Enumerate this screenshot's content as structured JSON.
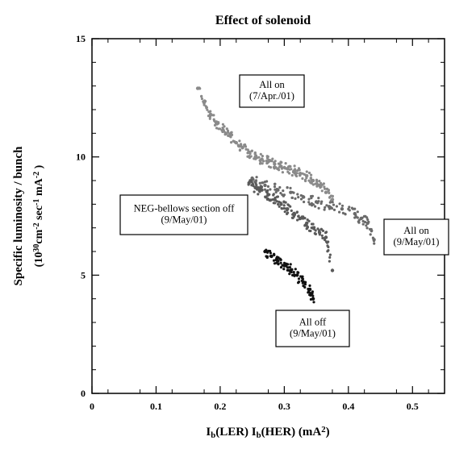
{
  "chart_data": {
    "type": "scatter",
    "title": "Effect of solenoid",
    "xlabel": {
      "parts": [
        {
          "t": "I",
          "s": "n"
        },
        {
          "t": "b",
          "s": "sub"
        },
        {
          "t": "(LER) I",
          "s": "n"
        },
        {
          "t": "b",
          "s": "sub"
        },
        {
          "t": "(HER) (mA",
          "s": "n"
        },
        {
          "t": "2",
          "s": "sup"
        },
        {
          "t": ")",
          "s": "n"
        }
      ]
    },
    "ylabel_line1": "Specific luminosity / bunch",
    "ylabel_line2": {
      "parts": [
        {
          "t": "(10",
          "s": "n"
        },
        {
          "t": "30",
          "s": "sup"
        },
        {
          "t": "cm",
          "s": "n"
        },
        {
          "t": "-2",
          "s": "sup"
        },
        {
          "t": " sec",
          "s": "n"
        },
        {
          "t": "-1",
          "s": "sup"
        },
        {
          "t": " mA",
          "s": "n"
        },
        {
          "t": "-2",
          "s": "sup"
        },
        {
          "t": " )",
          "s": "n"
        }
      ]
    },
    "xlim": [
      0,
      0.55
    ],
    "ylim": [
      0,
      15
    ],
    "x_ticks": [
      "0",
      "0.1",
      "0.2",
      "0.3",
      "0.4",
      "0.5"
    ],
    "y_ticks": [
      "0",
      "5",
      "10",
      "15"
    ],
    "grid": false,
    "series": [
      {
        "name": "All on (7/Apr./01)",
        "color": "#8a8a8a",
        "x": [
          0.165,
          0.175,
          0.185,
          0.195,
          0.205,
          0.215,
          0.225,
          0.235,
          0.245,
          0.255,
          0.265,
          0.275,
          0.285,
          0.295,
          0.305,
          0.315,
          0.325,
          0.335,
          0.345,
          0.355,
          0.365,
          0.375
        ],
        "y": [
          12.9,
          12.3,
          11.8,
          11.4,
          11.1,
          10.9,
          10.6,
          10.4,
          10.2,
          10.0,
          9.9,
          9.8,
          9.7,
          9.6,
          9.5,
          9.4,
          9.3,
          9.2,
          9.0,
          8.8,
          8.5,
          8.2
        ]
      },
      {
        "name": "All on (9/May/01)",
        "color": "#6a6a6a",
        "x": [
          0.25,
          0.27,
          0.29,
          0.31,
          0.33,
          0.35,
          0.37,
          0.39,
          0.41,
          0.42,
          0.43,
          0.44
        ],
        "y": [
          9.1,
          8.8,
          8.6,
          8.5,
          8.3,
          8.1,
          7.9,
          7.8,
          7.6,
          7.4,
          7.2,
          6.5
        ]
      },
      {
        "name": "NEG-bellows section off (9/May/01)",
        "color": "#5a5a5a",
        "x": [
          0.245,
          0.255,
          0.265,
          0.275,
          0.285,
          0.295,
          0.305,
          0.315,
          0.325,
          0.335,
          0.345,
          0.355,
          0.365,
          0.375
        ],
        "y": [
          8.9,
          8.7,
          8.6,
          8.4,
          8.2,
          8.0,
          7.8,
          7.6,
          7.4,
          7.2,
          7.0,
          6.8,
          6.6,
          5.2
        ]
      },
      {
        "name": "All off (9/May/01)",
        "color": "#111111",
        "x": [
          0.27,
          0.28,
          0.29,
          0.3,
          0.31,
          0.32,
          0.33,
          0.34,
          0.345
        ],
        "y": [
          6.0,
          5.8,
          5.6,
          5.4,
          5.2,
          5.0,
          4.7,
          4.4,
          4.0
        ]
      }
    ],
    "annotations": [
      {
        "lines": [
          "All on",
          "(7/Apr./01)"
        ]
      },
      {
        "lines": [
          "NEG-bellows section off",
          "(9/May/01)"
        ]
      },
      {
        "lines": [
          "All on",
          "(9/May/01)"
        ]
      },
      {
        "lines": [
          "All off",
          "(9/May/01)"
        ]
      }
    ]
  }
}
